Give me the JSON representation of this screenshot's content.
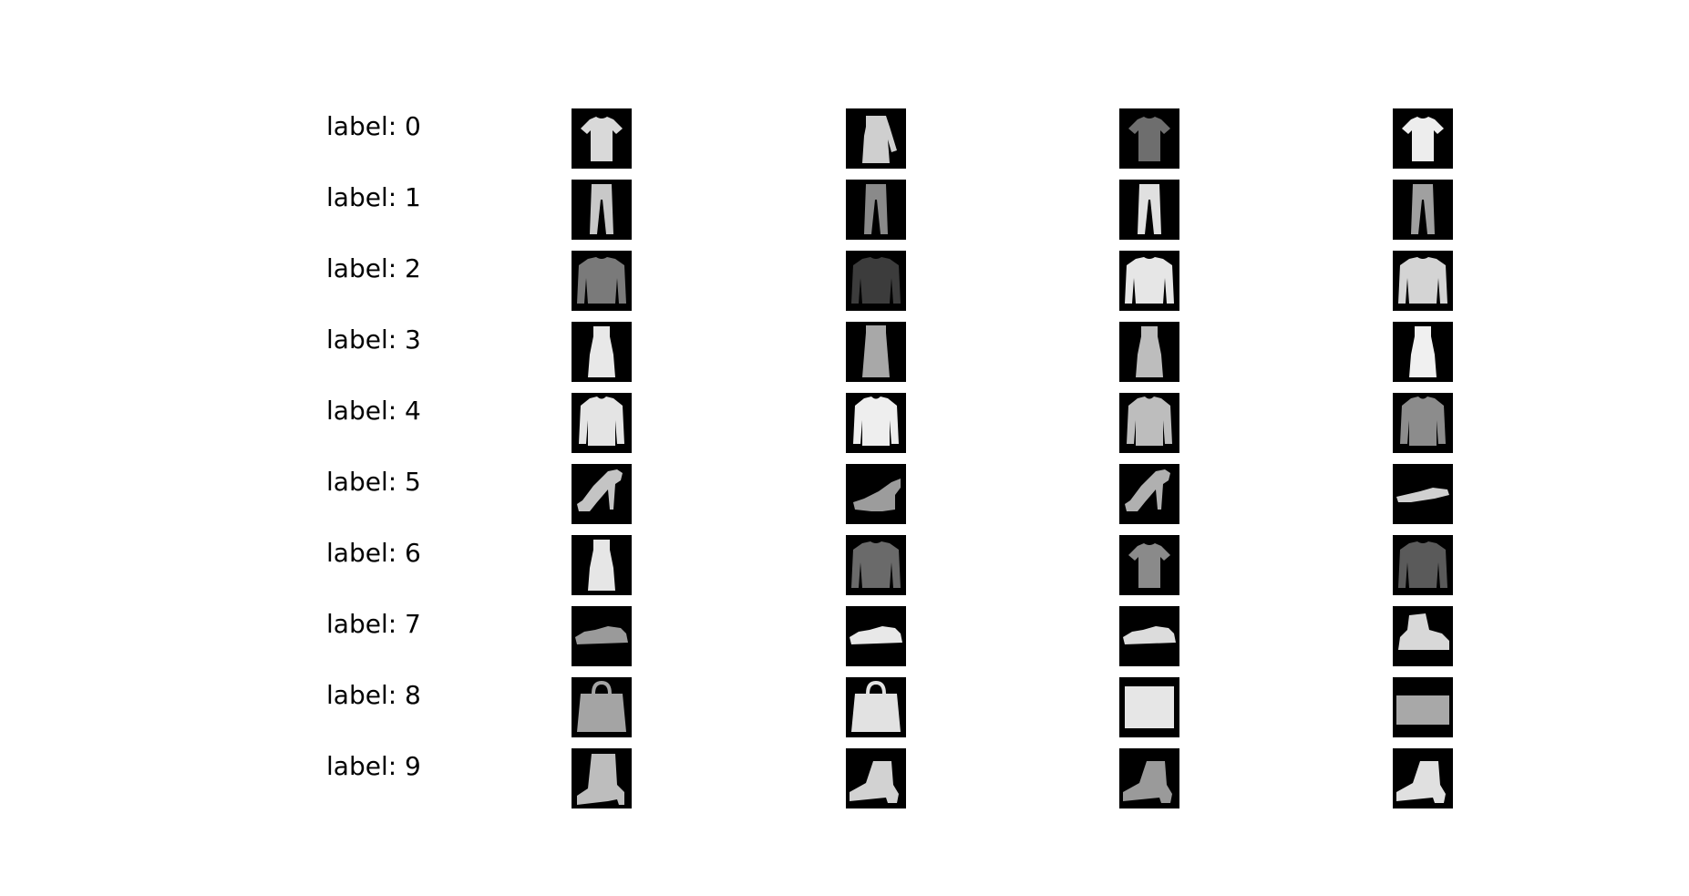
{
  "figure": {
    "rows": [
      {
        "label": "label: 0",
        "class_index": 0,
        "images": [
          {
            "icon": "tshirt-printed-icon",
            "shape": "tee",
            "shade": "#d9d9d9"
          },
          {
            "icon": "dress-long-sleeve-icon",
            "shape": "dress-sleeve",
            "shade": "#cfcfcf"
          },
          {
            "icon": "tshirt-dark-icon",
            "shape": "tee",
            "shade": "#6e6e6e"
          },
          {
            "icon": "tshirt-plain-icon",
            "shape": "tee",
            "shade": "#ededed"
          }
        ]
      },
      {
        "label": "label: 1",
        "class_index": 1,
        "images": [
          {
            "icon": "trouser-icon",
            "shape": "trouser",
            "shade": "#c8c8c8"
          },
          {
            "icon": "trouser-icon",
            "shape": "trouser",
            "shade": "#8a8a8a"
          },
          {
            "icon": "trouser-icon",
            "shape": "trouser",
            "shade": "#e0e0e0"
          },
          {
            "icon": "trouser-icon",
            "shape": "trouser",
            "shade": "#a0a0a0"
          }
        ]
      },
      {
        "label": "label: 2",
        "class_index": 2,
        "images": [
          {
            "icon": "pullover-printed-icon",
            "shape": "pullover",
            "shade": "#7a7a7a"
          },
          {
            "icon": "pullover-dark-icon",
            "shape": "pullover",
            "shade": "#3c3c3c"
          },
          {
            "icon": "pullover-vneck-icon",
            "shape": "pullover",
            "shade": "#e6e6e6"
          },
          {
            "icon": "pullover-plain-icon",
            "shape": "pullover",
            "shade": "#d4d4d4"
          }
        ]
      },
      {
        "label": "label: 3",
        "class_index": 3,
        "images": [
          {
            "icon": "dress-icon",
            "shape": "dress",
            "shade": "#e8e8e8"
          },
          {
            "icon": "dress-skirt-icon",
            "shape": "skirt",
            "shade": "#a8a8a8"
          },
          {
            "icon": "dress-printed-icon",
            "shape": "dress",
            "shade": "#bdbdbd"
          },
          {
            "icon": "dress-icon",
            "shape": "dress",
            "shade": "#f0f0f0"
          }
        ]
      },
      {
        "label": "label: 4",
        "class_index": 4,
        "images": [
          {
            "icon": "coat-icon",
            "shape": "coat",
            "shade": "#e4e4e4"
          },
          {
            "icon": "coat-hooded-icon",
            "shape": "coat",
            "shade": "#eeeeee"
          },
          {
            "icon": "coat-icon",
            "shape": "coat",
            "shade": "#bdbdbd"
          },
          {
            "icon": "coat-denim-icon",
            "shape": "coat",
            "shade": "#8c8c8c"
          }
        ]
      },
      {
        "label": "label: 5",
        "class_index": 5,
        "images": [
          {
            "icon": "sandal-heel-icon",
            "shape": "sandal-heel",
            "shade": "#c4c4c4"
          },
          {
            "icon": "sandal-wedge-icon",
            "shape": "sandal-wedge",
            "shade": "#9c9c9c"
          },
          {
            "icon": "sandal-heel-icon",
            "shape": "sandal-heel",
            "shade": "#b0b0b0"
          },
          {
            "icon": "sandal-flipflop-icon",
            "shape": "sandal-flat",
            "shade": "#d0d0d0"
          }
        ]
      },
      {
        "label": "label: 6",
        "class_index": 6,
        "images": [
          {
            "icon": "shirt-sleeveless-icon",
            "shape": "dress",
            "shade": "#e6e6e6"
          },
          {
            "icon": "shirt-vest-icon",
            "shape": "pullover",
            "shade": "#6a6a6a"
          },
          {
            "icon": "shirt-printed-icon",
            "shape": "tee",
            "shade": "#8a8a8a"
          },
          {
            "icon": "shirt-plaid-icon",
            "shape": "pullover",
            "shade": "#5a5a5a"
          }
        ]
      },
      {
        "label": "label: 7",
        "class_index": 7,
        "images": [
          {
            "icon": "sneaker-icon",
            "shape": "sneaker",
            "shade": "#9a9a9a"
          },
          {
            "icon": "sneaker-icon",
            "shape": "sneaker",
            "shade": "#e8e8e8"
          },
          {
            "icon": "sneaker-icon",
            "shape": "sneaker",
            "shade": "#dcdcdc"
          },
          {
            "icon": "sneaker-hightop-icon",
            "shape": "hightop",
            "shade": "#d8d8d8"
          }
        ]
      },
      {
        "label": "label: 8",
        "class_index": 8,
        "images": [
          {
            "icon": "bag-tote-icon",
            "shape": "bag",
            "shade": "#a4a4a4"
          },
          {
            "icon": "bag-handbag-icon",
            "shape": "bag",
            "shade": "#e2e2e2"
          },
          {
            "icon": "bag-box-icon",
            "shape": "box",
            "shade": "#e6e6e6"
          },
          {
            "icon": "bag-clutch-icon",
            "shape": "clutch",
            "shade": "#a8a8a8"
          }
        ]
      },
      {
        "label": "label: 9",
        "class_index": 9,
        "images": [
          {
            "icon": "ankle-boot-icon",
            "shape": "boot",
            "shade": "#bdbdbd"
          },
          {
            "icon": "ankle-boot-icon",
            "shape": "boot-low",
            "shade": "#d2d2d2"
          },
          {
            "icon": "ankle-boot-icon",
            "shape": "boot-low",
            "shade": "#9a9a9a"
          },
          {
            "icon": "ankle-boot-icon",
            "shape": "boot-low",
            "shade": "#e0e0e0"
          }
        ]
      }
    ]
  }
}
